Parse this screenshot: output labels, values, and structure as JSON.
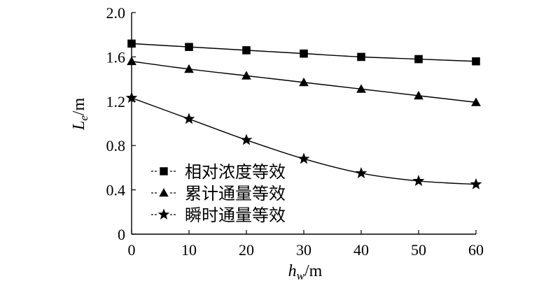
{
  "chart_data": {
    "type": "line",
    "title": "",
    "x": [
      0,
      10,
      20,
      30,
      40,
      50,
      60
    ],
    "xlim": [
      0,
      60
    ],
    "ylim": [
      0,
      2.0
    ],
    "xticks": [
      "0",
      "10",
      "20",
      "30",
      "40",
      "50",
      "60"
    ],
    "yticks": [
      "0",
      "0.4",
      "0.8",
      "1.2",
      "1.6",
      "2.0"
    ],
    "xlabel": {
      "main": "h",
      "sub": "w",
      "unit": "/m"
    },
    "ylabel": {
      "main": "L",
      "sub": "e",
      "unit": "/m"
    },
    "grid": false,
    "legend_position": "bottom-left",
    "series": [
      {
        "name": "相对浓度等效",
        "marker": "square",
        "values": [
          1.72,
          1.69,
          1.66,
          1.63,
          1.6,
          1.58,
          1.56
        ]
      },
      {
        "name": "累计通量等效",
        "marker": "triangle",
        "values": [
          1.56,
          1.49,
          1.43,
          1.37,
          1.31,
          1.25,
          1.19
        ]
      },
      {
        "name": "瞬时通量等效",
        "marker": "star",
        "values": [
          1.23,
          1.04,
          0.85,
          0.68,
          0.55,
          0.48,
          0.45
        ]
      }
    ],
    "colors": {
      "axis": "#000000",
      "line": "#000000",
      "marker": "#000000"
    }
  }
}
